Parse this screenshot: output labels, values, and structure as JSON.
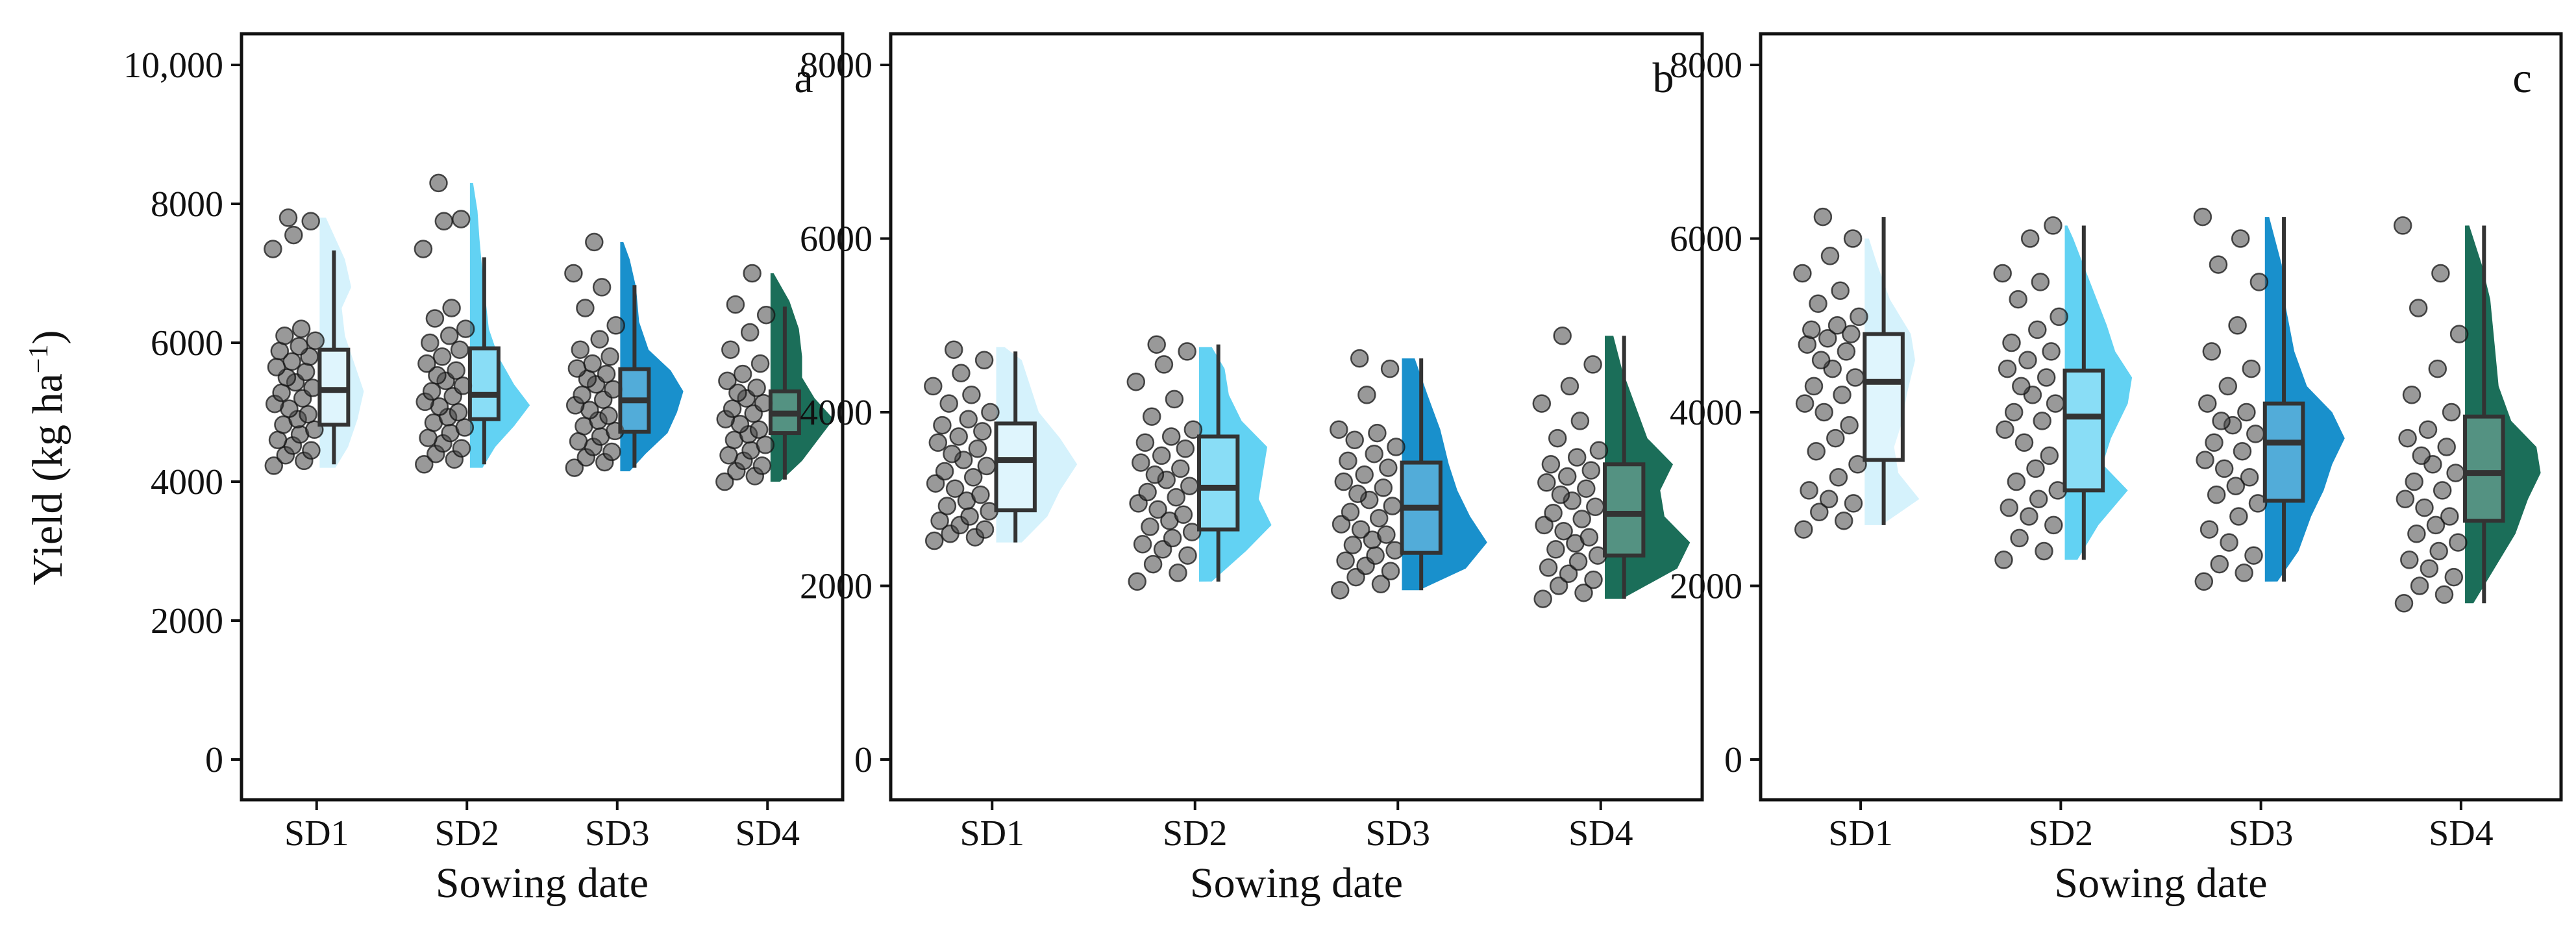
{
  "chart_data": {
    "type": "raincloud",
    "ylabel": "Yield (kg ha",
    "ylabel_sup": "−1",
    "ylabel_close": ")",
    "xlabel": "Sowing date",
    "categories": [
      "SD1",
      "SD2",
      "SD3",
      "SD4"
    ],
    "colors": [
      "#d3f1fc",
      "#5ad0f2",
      "#0d8ac9",
      "#0f6650"
    ],
    "panels": [
      {
        "label": "a",
        "ylim": [
          0,
          10000
        ],
        "yticks": [
          0,
          2000,
          4000,
          6000,
          8000,
          10000
        ],
        "ytick_labels": [
          "0",
          "2000",
          "4000",
          "6000",
          "8000",
          "10,000"
        ],
        "boxes": [
          {
            "min": 4250,
            "q1": 4820,
            "median": 5320,
            "q3": 5900,
            "max": 7330
          },
          {
            "min": 4250,
            "q1": 4900,
            "median": 5250,
            "q3": 5920,
            "max": 7230
          },
          {
            "min": 4200,
            "q1": 4720,
            "median": 5170,
            "q3": 5620,
            "max": 6830
          },
          {
            "min": 4030,
            "q1": 4700,
            "median": 4980,
            "q3": 5300,
            "max": 6520
          }
        ],
        "points": [
          [
            4230,
            4300,
            4380,
            4450,
            4520,
            4600,
            4680,
            4750,
            4820,
            4900,
            4970,
            5050,
            5120,
            5200,
            5280,
            5350,
            5430,
            5500,
            5580,
            5650,
            5730,
            5800,
            5880,
            5950,
            6030,
            6100,
            6200,
            7350,
            7550,
            7750,
            7800
          ],
          [
            4250,
            4320,
            4400,
            4480,
            4550,
            4630,
            4700,
            4780,
            4850,
            4930,
            5000,
            5080,
            5150,
            5230,
            5300,
            5380,
            5450,
            5530,
            5600,
            5700,
            5800,
            5900,
            6000,
            6100,
            6200,
            6350,
            6500,
            7350,
            7750,
            7780,
            8300
          ],
          [
            4200,
            4280,
            4350,
            4430,
            4500,
            4580,
            4650,
            4730,
            4800,
            4880,
            4950,
            5030,
            5100,
            5180,
            5250,
            5330,
            5400,
            5480,
            5550,
            5630,
            5700,
            5800,
            5900,
            6050,
            6250,
            6500,
            6800,
            7000,
            7450
          ],
          [
            4000,
            4080,
            4150,
            4230,
            4300,
            4380,
            4450,
            4530,
            4600,
            4680,
            4750,
            4830,
            4900,
            4980,
            5050,
            5130,
            5200,
            5280,
            5350,
            5450,
            5550,
            5700,
            5900,
            6150,
            6400,
            6550,
            7000
          ]
        ],
        "density": [
          [
            [
              4200,
              0.25
            ],
            [
              4500,
              0.45
            ],
            [
              4900,
              0.6
            ],
            [
              5300,
              0.7
            ],
            [
              5700,
              0.55
            ],
            [
              6100,
              0.4
            ],
            [
              6500,
              0.35
            ],
            [
              6800,
              0.5
            ],
            [
              7200,
              0.4
            ],
            [
              7500,
              0.25
            ],
            [
              7800,
              0.1
            ]
          ],
          [
            [
              4200,
              0.2
            ],
            [
              4500,
              0.4
            ],
            [
              4800,
              0.7
            ],
            [
              5100,
              0.95
            ],
            [
              5400,
              0.7
            ],
            [
              5800,
              0.45
            ],
            [
              6200,
              0.3
            ],
            [
              6600,
              0.25
            ],
            [
              7000,
              0.2
            ],
            [
              7500,
              0.15
            ],
            [
              7900,
              0.12
            ],
            [
              8300,
              0.05
            ]
          ],
          [
            [
              4150,
              0.15
            ],
            [
              4400,
              0.4
            ],
            [
              4700,
              0.75
            ],
            [
              5000,
              0.9
            ],
            [
              5300,
              1.0
            ],
            [
              5600,
              0.8
            ],
            [
              5900,
              0.45
            ],
            [
              6300,
              0.3
            ],
            [
              6800,
              0.25
            ],
            [
              7200,
              0.15
            ],
            [
              7450,
              0.05
            ]
          ],
          [
            [
              4000,
              0.15
            ],
            [
              4300,
              0.5
            ],
            [
              4600,
              0.75
            ],
            [
              4900,
              1.0
            ],
            [
              5200,
              0.7
            ],
            [
              5500,
              0.5
            ],
            [
              5800,
              0.5
            ],
            [
              6200,
              0.45
            ],
            [
              6600,
              0.3
            ],
            [
              7000,
              0.05
            ]
          ]
        ]
      },
      {
        "label": "b",
        "ylim": [
          0,
          8000
        ],
        "yticks": [
          0,
          2000,
          4000,
          6000,
          8000
        ],
        "ytick_labels": [
          "0",
          "2000",
          "4000",
          "6000",
          "8000"
        ],
        "boxes": [
          {
            "min": 2500,
            "q1": 2870,
            "median": 3450,
            "q3": 3870,
            "max": 4700
          },
          {
            "min": 2050,
            "q1": 2650,
            "median": 3130,
            "q3": 3720,
            "max": 4780
          },
          {
            "min": 1950,
            "q1": 2380,
            "median": 2900,
            "q3": 3420,
            "max": 4620
          },
          {
            "min": 1850,
            "q1": 2350,
            "median": 2830,
            "q3": 3400,
            "max": 4880
          }
        ],
        "points": [
          [
            2520,
            2560,
            2600,
            2650,
            2700,
            2750,
            2800,
            2860,
            2920,
            2980,
            3050,
            3120,
            3180,
            3250,
            3320,
            3380,
            3450,
            3520,
            3580,
            3650,
            3720,
            3780,
            3850,
            3920,
            4000,
            4100,
            4200,
            4300,
            4450,
            4600,
            4720
          ],
          [
            2050,
            2150,
            2250,
            2350,
            2420,
            2480,
            2550,
            2620,
            2680,
            2750,
            2820,
            2880,
            2950,
            3020,
            3080,
            3150,
            3220,
            3280,
            3350,
            3420,
            3500,
            3580,
            3650,
            3720,
            3800,
            3950,
            4150,
            4350,
            4550,
            4700,
            4780
          ],
          [
            1950,
            2020,
            2100,
            2170,
            2230,
            2290,
            2350,
            2410,
            2470,
            2530,
            2590,
            2650,
            2710,
            2780,
            2850,
            2920,
            2990,
            3060,
            3130,
            3200,
            3280,
            3360,
            3440,
            3520,
            3600,
            3680,
            3760,
            3800,
            4200,
            4500,
            4620
          ],
          [
            1850,
            1920,
            2000,
            2070,
            2140,
            2210,
            2280,
            2350,
            2420,
            2490,
            2560,
            2630,
            2700,
            2770,
            2840,
            2910,
            2980,
            3050,
            3120,
            3190,
            3260,
            3330,
            3400,
            3480,
            3560,
            3700,
            3900,
            4100,
            4300,
            4550,
            4880
          ]
        ],
        "density": [
          [
            [
              2500,
              0.3
            ],
            [
              2800,
              0.6
            ],
            [
              3100,
              0.75
            ],
            [
              3400,
              0.95
            ],
            [
              3700,
              0.75
            ],
            [
              4000,
              0.5
            ],
            [
              4300,
              0.4
            ],
            [
              4600,
              0.3
            ],
            [
              4750,
              0.1
            ]
          ],
          [
            [
              2050,
              0.15
            ],
            [
              2400,
              0.55
            ],
            [
              2700,
              0.85
            ],
            [
              3000,
              0.7
            ],
            [
              3300,
              0.75
            ],
            [
              3600,
              0.8
            ],
            [
              3900,
              0.5
            ],
            [
              4200,
              0.35
            ],
            [
              4500,
              0.3
            ],
            [
              4750,
              0.15
            ]
          ],
          [
            [
              1950,
              0.2
            ],
            [
              2200,
              0.75
            ],
            [
              2500,
              1.0
            ],
            [
              2800,
              0.8
            ],
            [
              3100,
              0.65
            ],
            [
              3400,
              0.55
            ],
            [
              3800,
              0.45
            ],
            [
              4200,
              0.3
            ],
            [
              4620,
              0.15
            ]
          ],
          [
            [
              1850,
              0.2
            ],
            [
              2200,
              0.85
            ],
            [
              2500,
              1.0
            ],
            [
              2800,
              0.7
            ],
            [
              3100,
              0.65
            ],
            [
              3400,
              0.8
            ],
            [
              3700,
              0.5
            ],
            [
              4100,
              0.35
            ],
            [
              4500,
              0.2
            ],
            [
              4880,
              0.1
            ]
          ]
        ]
      },
      {
        "label": "c",
        "ylim": [
          0,
          8000
        ],
        "yticks": [
          0,
          2000,
          4000,
          6000,
          8000
        ],
        "ytick_labels": [
          "0",
          "2000",
          "4000",
          "6000",
          "8000"
        ],
        "boxes": [
          {
            "min": 2700,
            "q1": 3450,
            "median": 4350,
            "q3": 4900,
            "max": 6250
          },
          {
            "min": 2300,
            "q1": 3100,
            "median": 3950,
            "q3": 4480,
            "max": 6150
          },
          {
            "min": 2050,
            "q1": 2980,
            "median": 3650,
            "q3": 4100,
            "max": 6250
          },
          {
            "min": 1800,
            "q1": 2750,
            "median": 3300,
            "q3": 3950,
            "max": 6150
          }
        ],
        "points": [
          [
            2650,
            2750,
            2850,
            2950,
            3000,
            3100,
            3250,
            3400,
            3550,
            3700,
            3850,
            4000,
            4100,
            4200,
            4300,
            4400,
            4500,
            4600,
            4700,
            4780,
            4850,
            4900,
            4950,
            5000,
            5100,
            5250,
            5400,
            5600,
            5800,
            6000,
            6250
          ],
          [
            2300,
            2400,
            2550,
            2700,
            2800,
            2900,
            3000,
            3100,
            3200,
            3350,
            3500,
            3650,
            3800,
            3900,
            4000,
            4100,
            4200,
            4300,
            4400,
            4500,
            4600,
            4700,
            4800,
            4950,
            5100,
            5300,
            5500,
            5600,
            6000,
            6150
          ],
          [
            2050,
            2150,
            2250,
            2350,
            2500,
            2650,
            2800,
            2950,
            3050,
            3150,
            3250,
            3350,
            3450,
            3550,
            3650,
            3750,
            3850,
            3900,
            4000,
            4100,
            4300,
            4500,
            4700,
            5000,
            5500,
            5700,
            6000,
            6250
          ],
          [
            1800,
            1900,
            2000,
            2100,
            2200,
            2300,
            2400,
            2500,
            2600,
            2700,
            2800,
            2900,
            3000,
            3100,
            3200,
            3300,
            3400,
            3500,
            3600,
            3700,
            3800,
            4000,
            4200,
            4500,
            4900,
            5200,
            5600,
            6150
          ]
        ],
        "density": [
          [
            [
              2700,
              0.2
            ],
            [
              3000,
              0.65
            ],
            [
              3300,
              0.4
            ],
            [
              3600,
              0.35
            ],
            [
              3900,
              0.45
            ],
            [
              4200,
              0.5
            ],
            [
              4600,
              0.6
            ],
            [
              4900,
              0.55
            ],
            [
              5300,
              0.3
            ],
            [
              5700,
              0.15
            ],
            [
              6000,
              0.05
            ]
          ],
          [
            [
              2300,
              0.15
            ],
            [
              2700,
              0.4
            ],
            [
              3100,
              0.75
            ],
            [
              3400,
              0.45
            ],
            [
              3700,
              0.55
            ],
            [
              4100,
              0.75
            ],
            [
              4400,
              0.8
            ],
            [
              4700,
              0.6
            ],
            [
              5000,
              0.5
            ],
            [
              5500,
              0.3
            ],
            [
              6000,
              0.1
            ],
            [
              6150,
              0.03
            ]
          ],
          [
            [
              2050,
              0.15
            ],
            [
              2400,
              0.4
            ],
            [
              2800,
              0.55
            ],
            [
              3100,
              0.7
            ],
            [
              3400,
              0.8
            ],
            [
              3700,
              0.95
            ],
            [
              4000,
              0.8
            ],
            [
              4300,
              0.5
            ],
            [
              4700,
              0.35
            ],
            [
              5200,
              0.25
            ],
            [
              5700,
              0.2
            ],
            [
              6250,
              0.05
            ]
          ],
          [
            [
              1800,
              0.1
            ],
            [
              2200,
              0.35
            ],
            [
              2600,
              0.6
            ],
            [
              3000,
              0.75
            ],
            [
              3300,
              0.9
            ],
            [
              3600,
              0.85
            ],
            [
              3900,
              0.55
            ],
            [
              4300,
              0.4
            ],
            [
              4800,
              0.35
            ],
            [
              5300,
              0.3
            ],
            [
              5700,
              0.2
            ],
            [
              6150,
              0.05
            ]
          ]
        ]
      }
    ]
  }
}
